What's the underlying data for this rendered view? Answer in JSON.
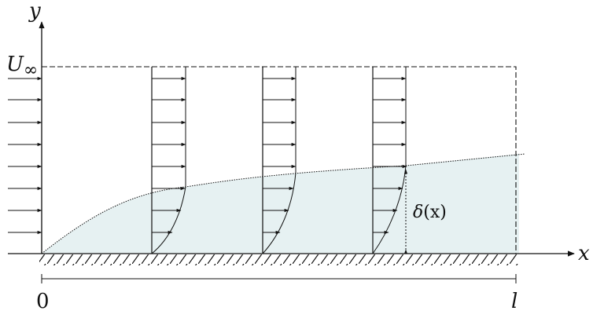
{
  "labels": {
    "x_axis": "x",
    "y_axis": "y",
    "freestream_symbol": "U",
    "freestream_subscript": "∞",
    "thickness_symbol": "δ",
    "thickness_arg": "(x)",
    "length_start": "0",
    "length_end": "l"
  },
  "colors": {
    "boundary_layer_fill": "#e6f1f2",
    "line": "#111111"
  }
}
